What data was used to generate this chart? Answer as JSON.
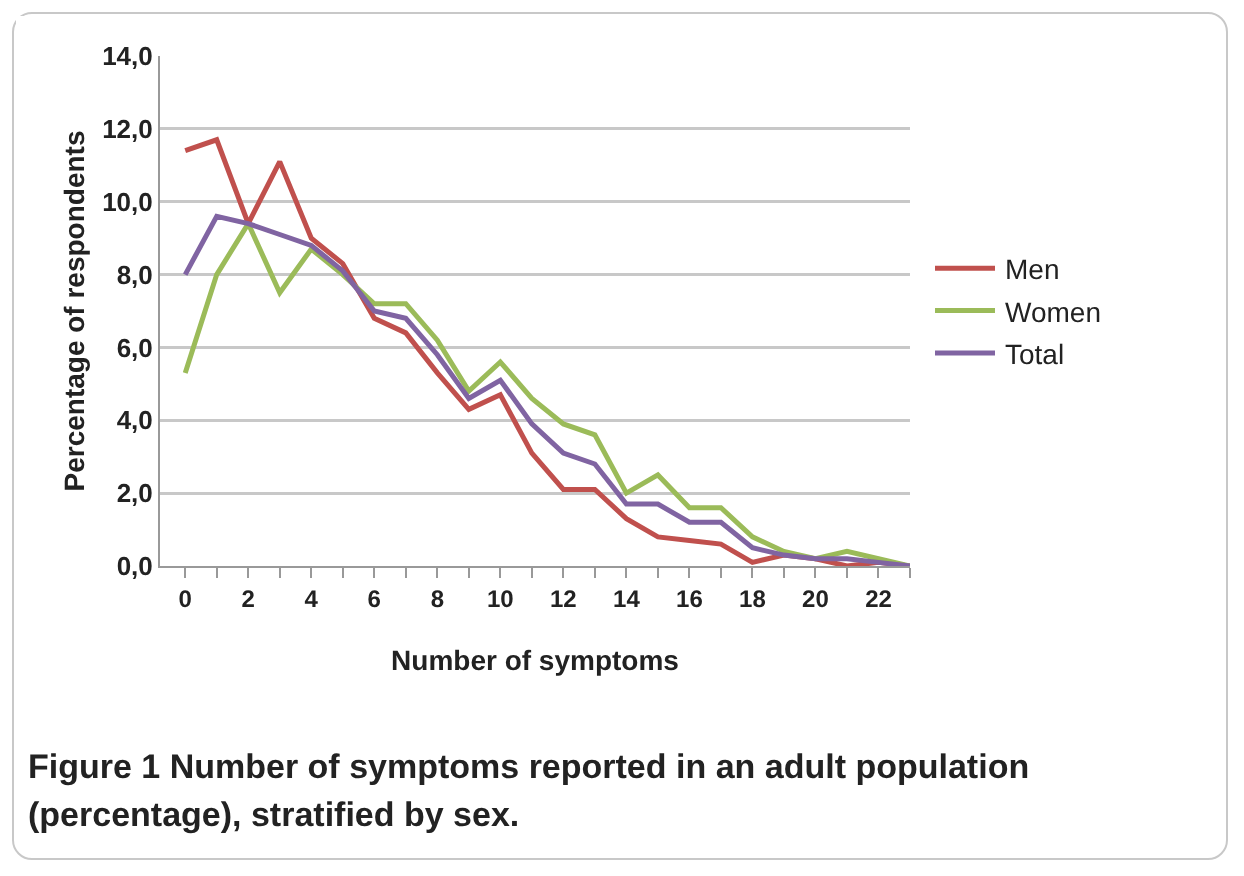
{
  "chart_data": {
    "type": "line",
    "xlabel": "Number of symptoms",
    "ylabel": "Percentage of respondents",
    "x": [
      0,
      1,
      2,
      3,
      4,
      5,
      6,
      7,
      8,
      9,
      10,
      11,
      12,
      13,
      14,
      15,
      16,
      17,
      18,
      19,
      20,
      21,
      22,
      23
    ],
    "series": [
      {
        "name": "Men",
        "color": "#c0504d",
        "values": [
          11.4,
          11.7,
          9.4,
          11.1,
          9.0,
          8.3,
          6.8,
          6.4,
          5.3,
          4.3,
          4.7,
          3.1,
          2.1,
          2.1,
          1.3,
          0.8,
          0.7,
          0.6,
          0.1,
          0.3,
          0.2,
          0.0,
          0.1,
          0.0
        ]
      },
      {
        "name": "Women",
        "color": "#9bbb59",
        "values": [
          5.3,
          8.0,
          9.4,
          7.5,
          8.7,
          8.0,
          7.2,
          7.2,
          6.2,
          4.8,
          5.6,
          4.6,
          3.9,
          3.6,
          2.0,
          2.5,
          1.6,
          1.6,
          0.8,
          0.4,
          0.2,
          0.4,
          0.2,
          0.0
        ]
      },
      {
        "name": "Total",
        "color": "#8064a2",
        "values": [
          8.0,
          9.6,
          9.4,
          9.1,
          8.8,
          8.1,
          7.0,
          6.8,
          5.8,
          4.6,
          5.1,
          3.9,
          3.1,
          2.8,
          1.7,
          1.7,
          1.2,
          1.2,
          0.5,
          0.3,
          0.2,
          0.2,
          0.1,
          0.0
        ]
      }
    ],
    "xlim": [
      -0.8,
      23
    ],
    "xticks": [
      0,
      {
        "value": 1,
        "label": null
      },
      2,
      {
        "value": 3,
        "label": null
      },
      4,
      {
        "value": 5,
        "label": null
      },
      6,
      {
        "value": 7,
        "label": null
      },
      8,
      {
        "value": 9,
        "label": null
      },
      10,
      {
        "value": 11,
        "label": null
      },
      12,
      {
        "value": 13,
        "label": null
      },
      14,
      {
        "value": 15,
        "label": null
      },
      16,
      {
        "value": 17,
        "label": null
      },
      18,
      {
        "value": 19,
        "label": null
      },
      20,
      {
        "value": 21,
        "label": null
      },
      22,
      {
        "value": 23,
        "label": null
      }
    ],
    "ylim": [
      0,
      14
    ],
    "yticks": [
      {
        "value": 0,
        "label": "0,0"
      },
      {
        "value": 2,
        "label": "2,0"
      },
      {
        "value": 4,
        "label": "4,0"
      },
      {
        "value": 6,
        "label": "6,0"
      },
      {
        "value": 8,
        "label": "8,0"
      },
      {
        "value": 10,
        "label": "10,0"
      },
      {
        "value": 12,
        "label": "12,0"
      },
      {
        "value": 14,
        "label": "14,0"
      }
    ],
    "grid": "y",
    "legend": "right",
    "marker": "none",
    "line_style": "solid",
    "annotations": [
      "Figure 1 Number of symptoms reported in an adult population (percentage), stratified by sex."
    ]
  }
}
